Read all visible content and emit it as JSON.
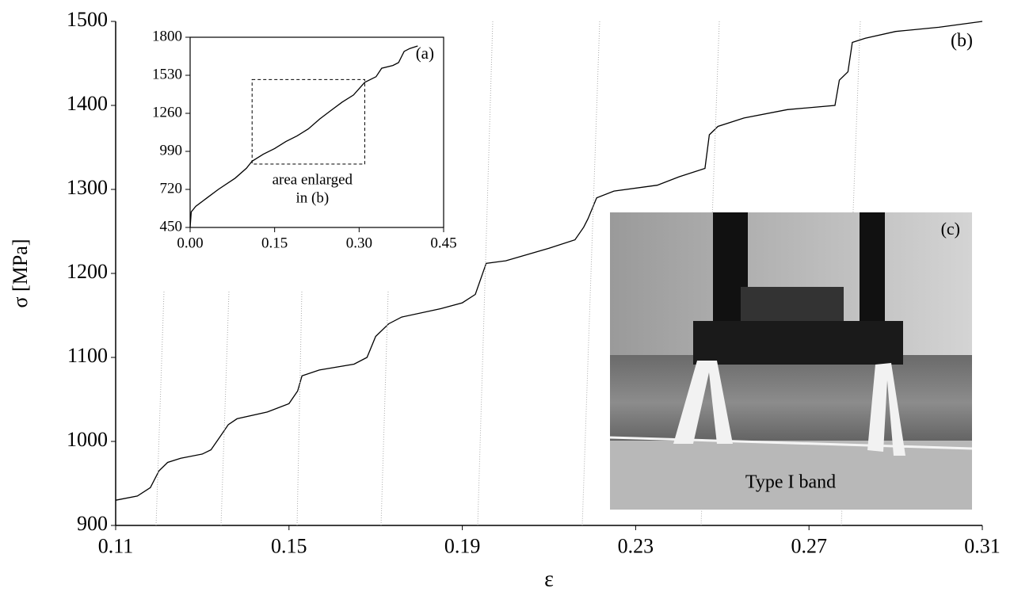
{
  "chart_data": [
    {
      "type": "line",
      "annotation": "(b)",
      "x_label": "ε",
      "y_label": "σ [MPa]",
      "color": "#000000",
      "x": [
        0.11,
        0.115,
        0.118,
        0.12,
        0.122,
        0.125,
        0.13,
        0.132,
        0.134,
        0.136,
        0.138,
        0.145,
        0.15,
        0.152,
        0.153,
        0.157,
        0.165,
        0.168,
        0.17,
        0.173,
        0.176,
        0.185,
        0.19,
        0.193,
        0.1955,
        0.2,
        0.21,
        0.216,
        0.218,
        0.219,
        0.221,
        0.225,
        0.235,
        0.24,
        0.246,
        0.247,
        0.249,
        0.255,
        0.265,
        0.276,
        0.277,
        0.279,
        0.28,
        0.283,
        0.29,
        0.3,
        0.31
      ],
      "values": [
        930,
        935,
        945,
        965,
        975,
        980,
        985,
        990,
        1005,
        1020,
        1027,
        1035,
        1045,
        1060,
        1078,
        1085,
        1092,
        1100,
        1125,
        1140,
        1148,
        1158,
        1165,
        1175,
        1212,
        1215,
        1230,
        1240,
        1255,
        1265,
        1290,
        1298,
        1305,
        1315,
        1325,
        1365,
        1375,
        1385,
        1395,
        1400,
        1430,
        1440,
        1475,
        1480,
        1488,
        1493,
        1500
      ],
      "xlim": [
        0.11,
        0.31
      ],
      "xticks": [
        0.11,
        0.15,
        0.19,
        0.23,
        0.27,
        0.31
      ],
      "ylim": [
        900,
        1500
      ],
      "yticks": [
        900,
        1000,
        1100,
        1200,
        1300,
        1400,
        1500
      ]
    },
    {
      "type": "line",
      "annotation": "(a)",
      "note_lines": [
        "area enlarged",
        "in (b)"
      ],
      "color": "#000000",
      "x": [
        0.0,
        0.002,
        0.01,
        0.03,
        0.05,
        0.08,
        0.1,
        0.11,
        0.13,
        0.15,
        0.17,
        0.19,
        0.21,
        0.23,
        0.25,
        0.27,
        0.29,
        0.31,
        0.33,
        0.34,
        0.36,
        0.37,
        0.38,
        0.39,
        0.404
      ],
      "values": [
        450,
        560,
        600,
        660,
        720,
        800,
        870,
        920,
        970,
        1010,
        1060,
        1100,
        1150,
        1220,
        1280,
        1340,
        1390,
        1480,
        1520,
        1580,
        1600,
        1620,
        1700,
        1720,
        1738
      ],
      "xlim": [
        0,
        0.45
      ],
      "xticks": [
        {
          "value": 0,
          "label": "0.00"
        },
        0.15,
        {
          "value": 0.3,
          "label": "0.30"
        },
        0.45
      ],
      "ylim": [
        450,
        1800
      ],
      "yticks": [
        450,
        720,
        990,
        1260,
        1530,
        1800
      ]
    }
  ],
  "photo": {
    "label": "(c)",
    "caption": "Type I band"
  }
}
